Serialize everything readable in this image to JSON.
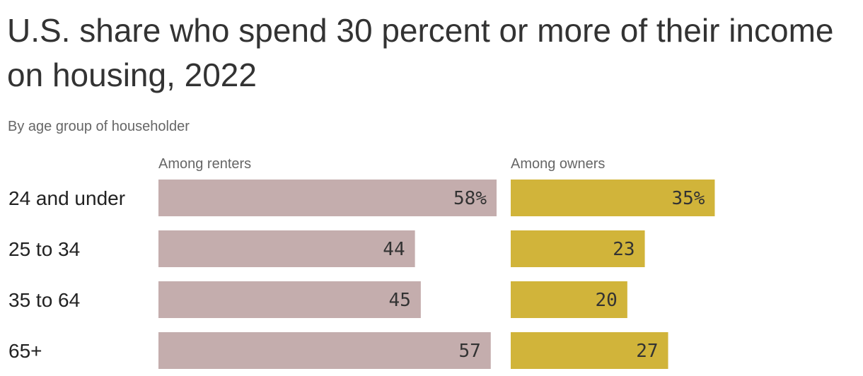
{
  "title": "U.S. share who spend 30 percent or more of their income on housing, 2022",
  "subtitle": "By age group of householder",
  "chart_data": {
    "type": "bar",
    "orientation": "horizontal",
    "categories": [
      "24 and under",
      "25 to 34",
      "35 to 64",
      "65+"
    ],
    "series": [
      {
        "name": "Among renters",
        "values": [
          58,
          44,
          45,
          57
        ],
        "labels": [
          "58%",
          "44",
          "45",
          "57"
        ],
        "color": "#c4adad"
      },
      {
        "name": "Among owners",
        "values": [
          35,
          23,
          20,
          27
        ],
        "labels": [
          "35%",
          "23",
          "20",
          "27"
        ],
        "color": "#d1b43a"
      }
    ],
    "xlim": [
      0,
      58
    ],
    "grid": false,
    "legend": "panel-titles"
  }
}
